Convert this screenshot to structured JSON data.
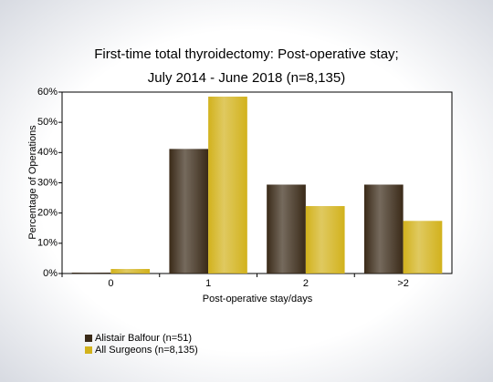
{
  "chart_data": {
    "type": "bar",
    "title": "First-time total thyroidectomy: Post-operative stay;",
    "subtitle": "July 2014 - June 2018 (n=8,135)",
    "x_label": "Post-operative stay/days",
    "y_label": "Percentage of Operations",
    "categories": [
      "0",
      "1",
      "2",
      ">2"
    ],
    "series": [
      {
        "name": "Alistair Balfour (n=51)",
        "color": "#3a2a18",
        "values": [
          0.3,
          41.2,
          29.4,
          29.4
        ]
      },
      {
        "name": "All Surgeons (n=8,135)",
        "color": "#d2b21c",
        "values": [
          1.5,
          58.5,
          22.3,
          17.4
        ]
      }
    ],
    "ylim": [
      0,
      60
    ],
    "yticks": [
      {
        "value": 0,
        "label": "0%"
      },
      {
        "value": 10,
        "label": "10%"
      },
      {
        "value": 20,
        "label": "20%"
      },
      {
        "value": 30,
        "label": "30%"
      },
      {
        "value": 40,
        "label": "40%"
      },
      {
        "value": 50,
        "label": "50%"
      },
      {
        "value": 60,
        "label": "60%"
      }
    ],
    "grid": false,
    "legend": "bottom-left"
  }
}
